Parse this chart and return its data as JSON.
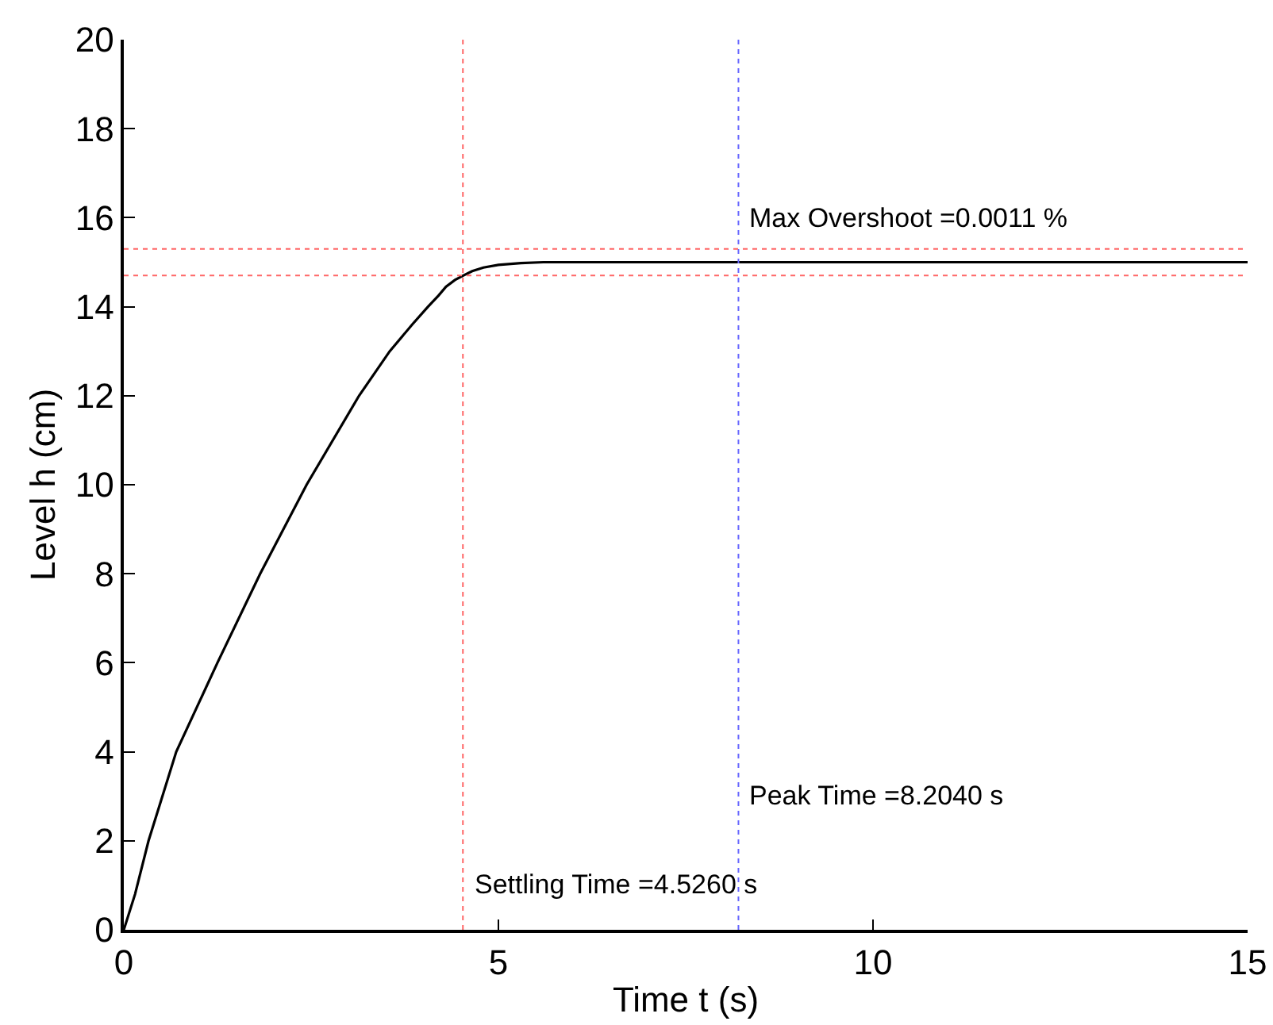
{
  "chart_data": {
    "type": "line",
    "xlabel": "Time t (s)",
    "ylabel": "Level h (cm)",
    "x": [
      0,
      0.15,
      0.33,
      0.7,
      1.25,
      1.82,
      2.44,
      3.14,
      3.55,
      3.85,
      4.06,
      4.2,
      4.3,
      4.42,
      4.53,
      4.65,
      4.8,
      5,
      5.3,
      5.6,
      6,
      8,
      10,
      15
    ],
    "series": [
      {
        "color": "#000000",
        "values": [
          0,
          0.8,
          2,
          4,
          6,
          8,
          10,
          12,
          13,
          13.6,
          14,
          14.25,
          14.45,
          14.6,
          14.7,
          14.8,
          14.88,
          14.94,
          14.98,
          15,
          15,
          15,
          15,
          15
        ]
      }
    ],
    "xlim": [
      0,
      15
    ],
    "xticks": [
      0,
      5,
      10,
      15
    ],
    "ylim": [
      0,
      20
    ],
    "yticks": [
      0,
      2,
      4,
      6,
      8,
      10,
      12,
      14,
      16,
      18,
      20
    ],
    "grid": false,
    "marker": "none",
    "line_style": "solid",
    "ref_lines": [
      {
        "axis": "x",
        "value": 4.526,
        "color": "#ff6666",
        "line_style": "dotted"
      },
      {
        "axis": "x",
        "value": 8.204,
        "color": "#6666ff",
        "line_style": "dotted"
      },
      {
        "axis": "y",
        "value": 15.3,
        "color": "#ff6666",
        "line_style": "dotted"
      },
      {
        "axis": "y",
        "value": 14.7,
        "color": "#ff6666",
        "line_style": "dotted"
      }
    ],
    "annotations": [
      {
        "text": "Max Overshoot =0.0011 %",
        "x": 8.3,
        "y": 16
      },
      {
        "text": "Peak Time =8.2040 s",
        "x": 8.3,
        "y": 3
      },
      "Settling Time =4.5260 s"
    ]
  }
}
